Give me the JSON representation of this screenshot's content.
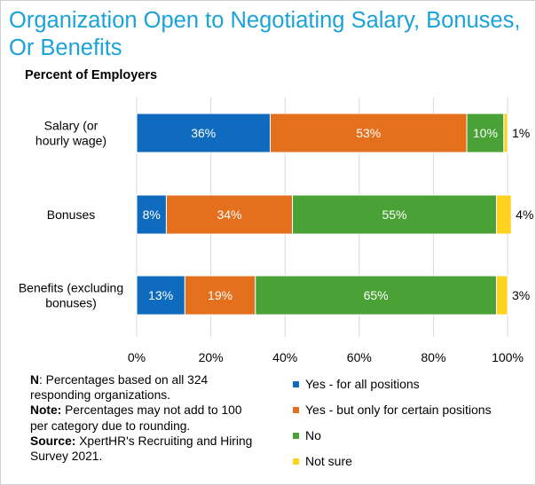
{
  "title": "Organization Open to Negotiating Salary, Bonuses, Or Benefits",
  "subtitle": "Percent of Employers",
  "colors": {
    "title": "#1aa3d9",
    "yes_all": "#0e6bbe",
    "yes_certain": "#e46f1c",
    "no": "#4aa135",
    "not_sure": "#ffd21f"
  },
  "chart_data": {
    "type": "bar",
    "orientation": "horizontal",
    "stacked": true,
    "categories": [
      "Salary (or hourly wage)",
      "Bonuses",
      "Benefits (excluding bonuses)"
    ],
    "series": [
      {
        "name": "Yes - for all positions",
        "values": [
          36,
          8,
          13
        ],
        "labels": [
          "36%",
          "8%",
          "13%"
        ]
      },
      {
        "name": "Yes - but only for certain positions",
        "values": [
          53,
          34,
          19
        ],
        "labels": [
          "53%",
          "34%",
          "19%"
        ]
      },
      {
        "name": "No",
        "values": [
          10,
          55,
          65
        ],
        "labels": [
          "10%",
          "55%",
          "65%"
        ]
      },
      {
        "name": "Not sure",
        "values": [
          1,
          4,
          3
        ],
        "labels": [
          "1%",
          "4%",
          "3%"
        ]
      }
    ],
    "xlim": [
      0,
      100
    ],
    "xticks": [
      "0%",
      "20%",
      "40%",
      "60%",
      "80%",
      "100%"
    ],
    "grid": true,
    "legend_position": "bottom-right"
  },
  "notes": {
    "n_label": "N",
    "n_text": ": Percentages based on all 324 responding organizations.",
    "note_label": "Note:",
    "note_text": " Percentages may not add to 100 per category due to rounding.",
    "source_label": "Source:",
    "source_text": " XpertHR's Recruiting and Hiring Survey 2021."
  }
}
